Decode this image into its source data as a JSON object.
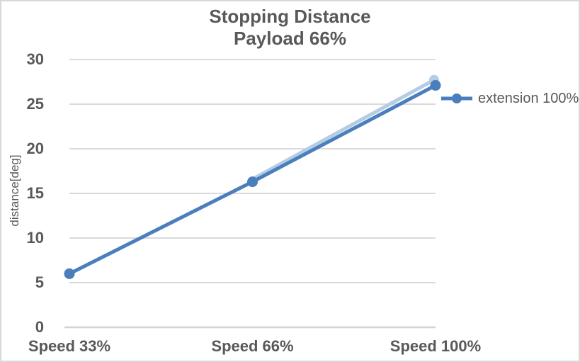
{
  "window": {
    "background": "#ffffff",
    "border_color": "#d9d9d9"
  },
  "colors": {
    "text": "#595959",
    "gridline": "#dadada",
    "axis_line": "#d3d3d3",
    "series_blue": "#4a7ebc",
    "ghost_blue": "#b4cce4"
  },
  "chart_data": {
    "type": "line",
    "title": "Stopping Distance",
    "subtitle": "Payload 66%",
    "xlabel": "",
    "ylabel": "distance[deg]",
    "categories": [
      "Speed 33%",
      "Speed 66%",
      "Speed 100%"
    ],
    "series": [
      {
        "name": "extension 100%",
        "values": [
          6.0,
          16.3,
          27.1
        ],
        "color": "#4a7ebc",
        "marker": "circle",
        "line_width": 5
      }
    ],
    "ghost_line": {
      "note": "faint light-blue offset duplicate of the main line, visible between 2nd and 3rd points, no legend entry",
      "from_category_index": 1,
      "values": [
        16.6,
        27.8
      ],
      "color": "#b4cce4"
    },
    "ylim": [
      0,
      30
    ],
    "yticks": [
      0,
      5,
      10,
      15,
      20,
      25,
      30
    ],
    "grid": true,
    "legend_position": "right"
  }
}
